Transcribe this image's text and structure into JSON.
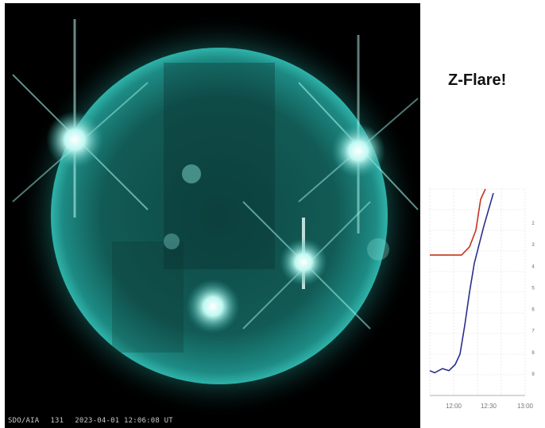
{
  "title": "Z-Flare!",
  "image_caption": {
    "instrument": "SDO/AIA",
    "wavelength": "131",
    "timestamp": "2023-04-01 12:06:08 UT"
  },
  "colors": {
    "sun_core": "#2aa29a",
    "sun_edge": "#0a3f3c",
    "flare": "#eafffd",
    "red_series": "#c8321e",
    "blue_series": "#28308a"
  },
  "chart_data": {
    "type": "line",
    "x_ticks": [
      "12:00",
      "12:30",
      "13:00"
    ],
    "y_ticks_right": [
      "2",
      "3",
      "4",
      "5",
      "6",
      "7",
      "8",
      "9"
    ],
    "ylabel": "",
    "xlim": [
      0,
      60
    ],
    "ylim": [
      0,
      10
    ],
    "grid": true,
    "series": [
      {
        "color": "#c8321e",
        "x": [
          0,
          14,
          20,
          25,
          29,
          32,
          35
        ],
        "y": [
          6.8,
          6.8,
          6.8,
          7.2,
          8.0,
          9.5,
          10
        ]
      },
      {
        "color": "#28308a",
        "x": [
          0,
          3,
          8,
          12,
          16,
          19,
          22,
          25,
          28,
          31,
          34,
          37,
          40
        ],
        "y": [
          1.2,
          1.1,
          1.3,
          1.2,
          1.5,
          2.0,
          3.4,
          5.0,
          6.4,
          7.3,
          8.2,
          9.0,
          9.8
        ]
      }
    ]
  }
}
